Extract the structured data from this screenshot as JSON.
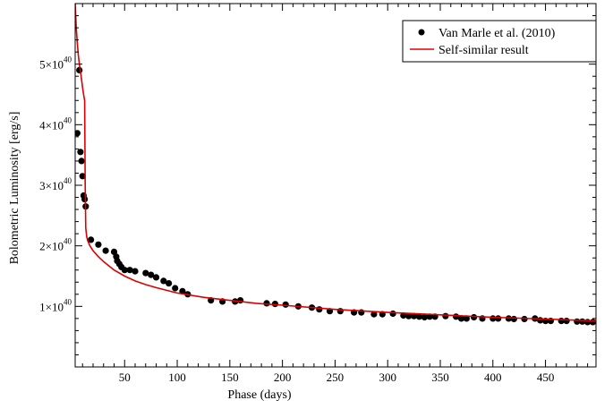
{
  "chart_data": {
    "type": "scatter",
    "xlabel": "Phase (days)",
    "ylabel": "Bolometric Luminosity  [erg/s]",
    "xlim": [
      3,
      498
    ],
    "ylim": [
      0,
      6.0
    ],
    "y_unit_prefix": "×10",
    "y_unit_exponent": "40",
    "x_ticks": [
      50,
      100,
      150,
      200,
      250,
      300,
      350,
      400,
      450
    ],
    "y_ticks": [
      1,
      2,
      3,
      4,
      5
    ],
    "legend_position": "top-right",
    "series": [
      {
        "name": "Van Marle et al. (2010)",
        "kind": "points",
        "color": "#000000",
        "x": [
          5,
          7,
          8,
          9,
          10,
          11,
          12,
          13,
          18,
          25,
          32,
          40,
          42,
          43,
          45,
          47,
          50,
          55,
          60,
          70,
          75,
          80,
          87,
          92,
          98,
          105,
          110,
          132,
          143,
          155,
          160,
          185,
          193,
          203,
          215,
          228,
          235,
          245,
          255,
          268,
          275,
          287,
          295,
          305,
          315,
          320,
          325,
          330,
          335,
          340,
          345,
          355,
          365,
          370,
          375,
          382,
          390,
          400,
          405,
          415,
          420,
          430,
          440,
          445,
          450,
          455,
          465,
          470,
          480,
          485,
          490,
          495
        ],
        "y": [
          3.86,
          4.9,
          3.55,
          3.4,
          3.15,
          2.83,
          2.77,
          2.65,
          2.1,
          2.02,
          1.92,
          1.9,
          1.82,
          1.75,
          1.7,
          1.65,
          1.6,
          1.6,
          1.58,
          1.55,
          1.52,
          1.48,
          1.42,
          1.38,
          1.3,
          1.25,
          1.2,
          1.1,
          1.08,
          1.08,
          1.1,
          1.05,
          1.04,
          1.03,
          1.0,
          0.98,
          0.95,
          0.92,
          0.92,
          0.9,
          0.9,
          0.87,
          0.87,
          0.88,
          0.85,
          0.84,
          0.84,
          0.83,
          0.82,
          0.83,
          0.83,
          0.84,
          0.83,
          0.8,
          0.8,
          0.82,
          0.8,
          0.8,
          0.8,
          0.8,
          0.79,
          0.79,
          0.8,
          0.77,
          0.76,
          0.76,
          0.76,
          0.76,
          0.75,
          0.75,
          0.74,
          0.74
        ]
      },
      {
        "name": "Self-similar result",
        "kind": "line",
        "color": "#dd0000",
        "x": [
          3,
          4,
          5,
          6,
          7,
          8,
          9,
          10,
          11,
          12,
          12.5,
          13,
          14,
          15,
          17,
          20,
          25,
          30,
          40,
          50,
          60,
          70,
          80,
          100,
          125,
          150,
          175,
          200,
          250,
          300,
          350,
          400,
          450,
          498
        ],
        "y": [
          6.0,
          5.6,
          5.35,
          5.15,
          5.0,
          4.88,
          4.75,
          4.62,
          4.5,
          4.4,
          3.0,
          2.3,
          2.15,
          2.08,
          2.0,
          1.92,
          1.82,
          1.74,
          1.6,
          1.5,
          1.42,
          1.36,
          1.31,
          1.22,
          1.15,
          1.1,
          1.05,
          1.02,
          0.95,
          0.9,
          0.86,
          0.82,
          0.79,
          0.76
        ]
      }
    ]
  }
}
